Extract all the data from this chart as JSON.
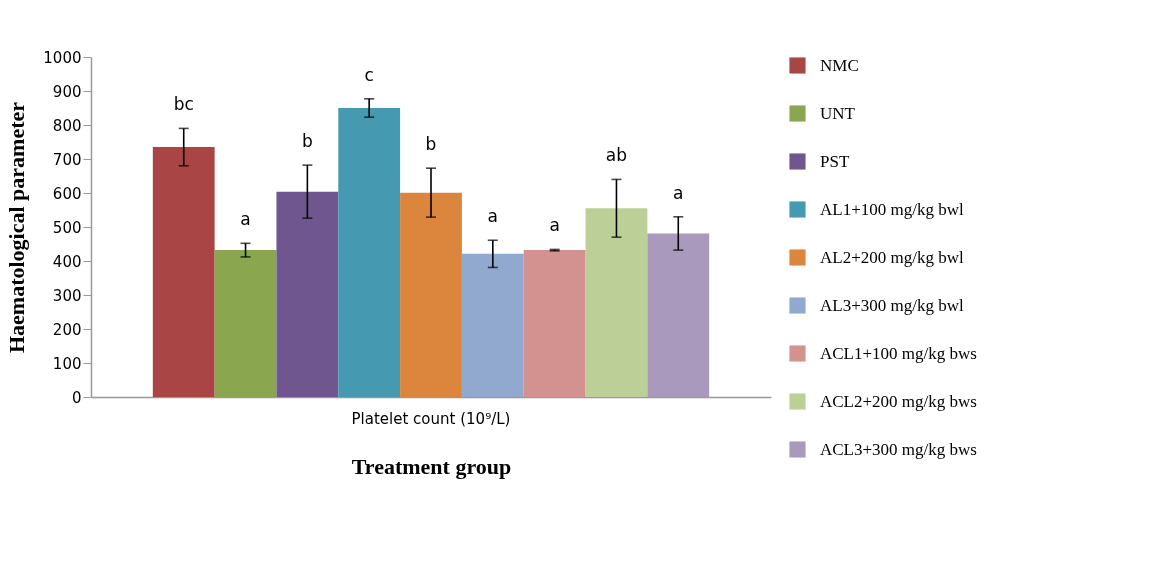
{
  "chart_data": {
    "type": "bar",
    "xlabel": "Treatment group",
    "ylabel": "Haematological parameter",
    "categories": [
      "Platelet count  (10⁹/L)"
    ],
    "series": [
      {
        "name": "NMC",
        "color": "#a94545",
        "values": [
          735
        ],
        "errors": [
          55
        ],
        "value_labels": [
          "bc"
        ]
      },
      {
        "name": "UNT",
        "color": "#8aa64e",
        "values": [
          432
        ],
        "errors": [
          20
        ],
        "value_labels": [
          "a"
        ]
      },
      {
        "name": "PST",
        "color": "#6f568e",
        "values": [
          604
        ],
        "errors": [
          78
        ],
        "value_labels": [
          "b"
        ]
      },
      {
        "name": "AL1+100 mg/kg bwl",
        "color": "#4599b0",
        "values": [
          850
        ],
        "errors": [
          27
        ],
        "value_labels": [
          "c"
        ]
      },
      {
        "name": "AL2+200 mg/kg bwl",
        "color": "#db853d",
        "values": [
          601
        ],
        "errors": [
          72
        ],
        "value_labels": [
          "b"
        ]
      },
      {
        "name": "AL3+300 mg/kg bwl",
        "color": "#91a9cf",
        "values": [
          421
        ],
        "errors": [
          40
        ],
        "value_labels": [
          "a"
        ]
      },
      {
        "name": "ACL1+100 mg/kg bws",
        "color": "#d39190",
        "values": [
          432
        ],
        "errors": [
          2
        ],
        "value_labels": [
          "a"
        ]
      },
      {
        "name": "ACL2+200 mg/kg bws",
        "color": "#bbcf96",
        "values": [
          555
        ],
        "errors": [
          85
        ],
        "value_labels": [
          "ab"
        ]
      },
      {
        "name": "ACL3+300 mg/kg bws",
        "color": "#a99abd",
        "values": [
          481
        ],
        "errors": [
          49
        ],
        "value_labels": [
          "a"
        ]
      }
    ],
    "ylim": [
      0,
      1000
    ],
    "yticks": [
      0,
      100,
      200,
      300,
      400,
      500,
      600,
      700,
      800,
      900,
      1000
    ],
    "grid": false,
    "legend": "right"
  }
}
